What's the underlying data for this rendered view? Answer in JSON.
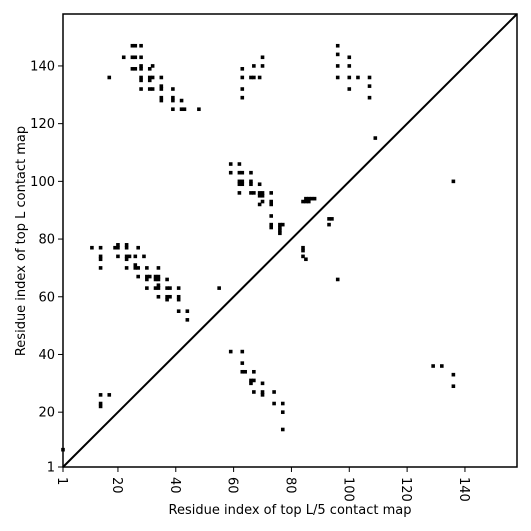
{
  "chart_data": {
    "type": "scatter",
    "xlabel": "Residue index of top L/5 contact map",
    "ylabel": "Residue index of top L contact map",
    "xlim": [
      1,
      158
    ],
    "ylim": [
      1,
      158
    ],
    "x_ticks": [
      1,
      20,
      40,
      60,
      80,
      100,
      120,
      140
    ],
    "y_ticks": [
      1,
      20,
      40,
      60,
      80,
      100,
      120,
      140
    ],
    "diagonal": true,
    "grid": false,
    "series": [
      {
        "marker": "square",
        "color": "#000000",
        "points": [
          [
            1,
            7
          ],
          [
            17,
            136
          ],
          [
            22,
            143
          ],
          [
            25,
            147
          ],
          [
            26,
            147
          ],
          [
            28,
            147
          ],
          [
            25,
            143
          ],
          [
            26,
            143
          ],
          [
            28,
            143
          ],
          [
            25,
            139
          ],
          [
            26,
            139
          ],
          [
            28,
            140
          ],
          [
            28,
            139
          ],
          [
            31,
            139
          ],
          [
            32,
            140
          ],
          [
            28,
            136
          ],
          [
            28,
            135
          ],
          [
            31,
            136
          ],
          [
            32,
            136
          ],
          [
            31,
            135
          ],
          [
            35,
            136
          ],
          [
            28,
            132
          ],
          [
            31,
            132
          ],
          [
            32,
            132
          ],
          [
            35,
            133
          ],
          [
            35,
            132
          ],
          [
            39,
            132
          ],
          [
            35,
            129
          ],
          [
            35,
            128
          ],
          [
            39,
            129
          ],
          [
            39,
            128
          ],
          [
            42,
            128
          ],
          [
            39,
            125
          ],
          [
            42,
            125
          ],
          [
            43,
            125
          ],
          [
            48,
            125
          ],
          [
            63,
            139
          ],
          [
            63,
            136
          ],
          [
            66,
            136
          ],
          [
            67,
            136
          ],
          [
            69,
            136
          ],
          [
            67,
            140
          ],
          [
            70,
            140
          ],
          [
            70,
            143
          ],
          [
            63,
            132
          ],
          [
            63,
            129
          ],
          [
            96,
            147
          ],
          [
            96,
            144
          ],
          [
            96,
            140
          ],
          [
            100,
            143
          ],
          [
            100,
            140
          ],
          [
            96,
            136
          ],
          [
            100,
            136
          ],
          [
            103,
            136
          ],
          [
            107,
            136
          ],
          [
            100,
            132
          ],
          [
            107,
            133
          ],
          [
            107,
            129
          ],
          [
            109,
            115
          ],
          [
            59,
            106
          ],
          [
            62,
            106
          ],
          [
            59,
            103
          ],
          [
            62,
            103
          ],
          [
            63,
            103
          ],
          [
            66,
            103
          ],
          [
            62,
            100
          ],
          [
            63,
            100
          ],
          [
            66,
            100
          ],
          [
            62,
            99
          ],
          [
            63,
            99
          ],
          [
            66,
            99
          ],
          [
            69,
            99
          ],
          [
            62,
            96
          ],
          [
            66,
            96
          ],
          [
            67,
            96
          ],
          [
            69,
            96
          ],
          [
            70,
            96
          ],
          [
            73,
            96
          ],
          [
            69,
            95
          ],
          [
            70,
            95
          ],
          [
            70,
            93
          ],
          [
            73,
            93
          ],
          [
            69,
            92
          ],
          [
            73,
            92
          ],
          [
            73,
            88
          ],
          [
            73,
            85
          ],
          [
            73,
            84
          ],
          [
            76,
            85
          ],
          [
            77,
            85
          ],
          [
            76,
            84
          ],
          [
            76,
            83
          ],
          [
            76,
            82
          ],
          [
            84,
            93
          ],
          [
            85,
            93
          ],
          [
            85,
            94
          ],
          [
            86,
            94
          ],
          [
            87,
            94
          ],
          [
            88,
            94
          ],
          [
            86,
            93
          ],
          [
            93,
            87
          ],
          [
            94,
            87
          ],
          [
            93,
            85
          ],
          [
            84,
            77
          ],
          [
            84,
            76
          ],
          [
            84,
            74
          ],
          [
            85,
            73
          ],
          [
            96,
            66
          ],
          [
            136,
            100
          ],
          [
            11,
            77
          ],
          [
            14,
            77
          ],
          [
            19,
            77
          ],
          [
            20,
            77
          ],
          [
            20,
            78
          ],
          [
            23,
            78
          ],
          [
            23,
            77
          ],
          [
            27,
            77
          ],
          [
            14,
            74
          ],
          [
            14,
            73
          ],
          [
            20,
            74
          ],
          [
            23,
            74
          ],
          [
            24,
            74
          ],
          [
            26,
            74
          ],
          [
            29,
            74
          ],
          [
            23,
            73
          ],
          [
            14,
            70
          ],
          [
            23,
            70
          ],
          [
            26,
            70
          ],
          [
            27,
            70
          ],
          [
            30,
            70
          ],
          [
            34,
            70
          ],
          [
            26,
            71
          ],
          [
            27,
            67
          ],
          [
            30,
            67
          ],
          [
            31,
            67
          ],
          [
            33,
            67
          ],
          [
            34,
            67
          ],
          [
            37,
            66
          ],
          [
            30,
            66
          ],
          [
            33,
            66
          ],
          [
            34,
            66
          ],
          [
            30,
            63
          ],
          [
            33,
            63
          ],
          [
            34,
            63
          ],
          [
            37,
            63
          ],
          [
            38,
            63
          ],
          [
            41,
            63
          ],
          [
            34,
            64
          ],
          [
            34,
            60
          ],
          [
            37,
            60
          ],
          [
            38,
            60
          ],
          [
            41,
            60
          ],
          [
            37,
            59
          ],
          [
            41,
            59
          ],
          [
            41,
            55
          ],
          [
            44,
            55
          ],
          [
            44,
            52
          ],
          [
            55,
            63
          ],
          [
            14,
            26
          ],
          [
            17,
            26
          ],
          [
            14,
            23
          ],
          [
            14,
            22
          ],
          [
            59,
            41
          ],
          [
            63,
            41
          ],
          [
            63,
            37
          ],
          [
            63,
            34
          ],
          [
            64,
            34
          ],
          [
            67,
            34
          ],
          [
            66,
            31
          ],
          [
            67,
            31
          ],
          [
            66,
            30
          ],
          [
            70,
            30
          ],
          [
            67,
            27
          ],
          [
            70,
            27
          ],
          [
            70,
            26
          ],
          [
            74,
            27
          ],
          [
            74,
            23
          ],
          [
            77,
            23
          ],
          [
            77,
            20
          ],
          [
            77,
            14
          ],
          [
            129,
            36
          ],
          [
            132,
            36
          ],
          [
            136,
            33
          ],
          [
            136,
            29
          ]
        ]
      }
    ]
  }
}
